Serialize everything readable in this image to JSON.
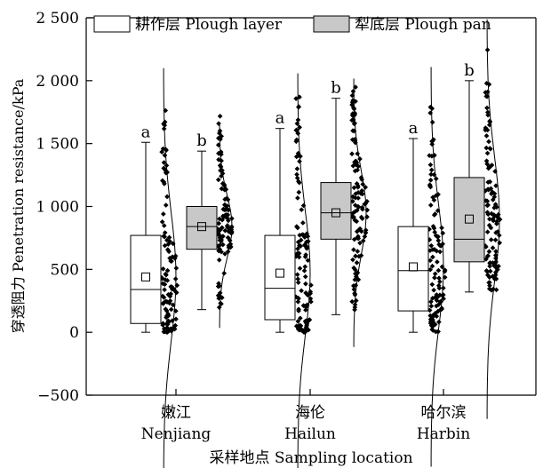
{
  "chart_data": {
    "type": "box",
    "title": "",
    "ylabel": "穿透阻力 Penetration resistance/kPa",
    "xlabel": "采样地点 Sampling location",
    "ylim": [
      -500,
      2500
    ],
    "yticks": [
      -500,
      0,
      500,
      1000,
      1500,
      2000,
      2500
    ],
    "ytick_labels": [
      "−500",
      "0",
      "500",
      "1 000",
      "1 500",
      "2 000",
      "2 500"
    ],
    "legend_position": "top",
    "categories": [
      {
        "zh": "嫩江",
        "en": "Nenjiang"
      },
      {
        "zh": "海伦",
        "en": "Hailun"
      },
      {
        "zh": "哈尔滨",
        "en": "Harbin"
      }
    ],
    "series": [
      {
        "name": "耕作层 Plough layer",
        "color": "#ffffff",
        "boxes": [
          {
            "min": 0,
            "q1": 70,
            "median": 340,
            "mean": 440,
            "q3": 770,
            "max": 1510,
            "letter": "a"
          },
          {
            "min": 0,
            "q1": 100,
            "median": 350,
            "mean": 470,
            "q3": 770,
            "max": 1620,
            "letter": "a"
          },
          {
            "min": 0,
            "q1": 170,
            "median": 490,
            "mean": 520,
            "q3": 840,
            "max": 1540,
            "letter": "a"
          }
        ]
      },
      {
        "name": "犁底层 Plough pan",
        "color": "#c8c8c8",
        "boxes": [
          {
            "min": 180,
            "q1": 660,
            "median": 840,
            "mean": 840,
            "q3": 1000,
            "max": 1440,
            "letter": "b"
          },
          {
            "min": 140,
            "q1": 740,
            "median": 950,
            "mean": 950,
            "q3": 1190,
            "max": 1860,
            "letter": "b"
          },
          {
            "min": 320,
            "q1": 560,
            "median": 740,
            "mean": 900,
            "q3": 1230,
            "max": 2000,
            "letter": "b"
          }
        ]
      }
    ]
  }
}
